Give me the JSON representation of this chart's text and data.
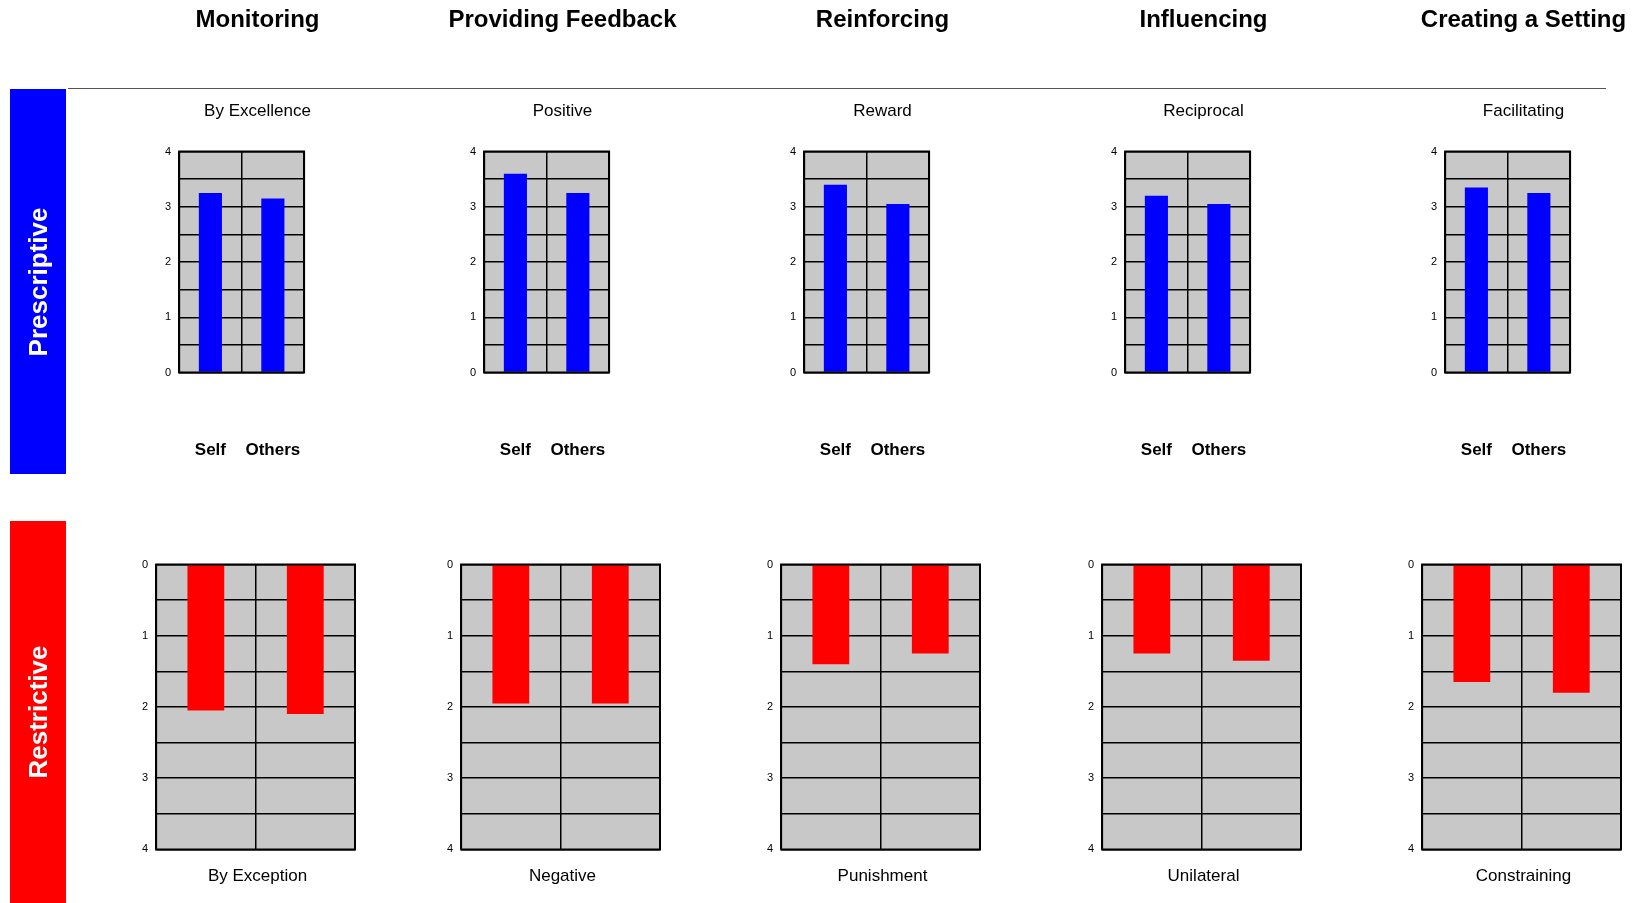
{
  "chart_data": [
    {
      "type": "bar",
      "title": "Monitoring",
      "subtitle": "By Excellence",
      "annotations": [
        "Prescriptive"
      ],
      "categories": [
        "Self",
        "Others"
      ],
      "values": [
        3.25,
        3.15
      ],
      "color": "#0000ff",
      "ylim": [
        0,
        4
      ],
      "yticks": [
        0,
        {
          "value": 0.5,
          "label": null
        },
        1,
        {
          "value": 1.5,
          "label": null
        },
        2,
        {
          "value": 2.5,
          "label": null
        },
        3,
        {
          "value": 3.5,
          "label": null
        },
        4
      ],
      "grid": true
    },
    {
      "type": "bar",
      "title": "Providing Feedback",
      "subtitle": "Positive",
      "categories": [
        "Self",
        "Others"
      ],
      "values": [
        3.6,
        3.25
      ],
      "color": "#0000ff",
      "ylim": [
        0,
        4
      ],
      "yticks": [
        0,
        {
          "value": 0.5,
          "label": null
        },
        1,
        {
          "value": 1.5,
          "label": null
        },
        2,
        {
          "value": 2.5,
          "label": null
        },
        3,
        {
          "value": 3.5,
          "label": null
        },
        4
      ],
      "grid": true
    },
    {
      "type": "bar",
      "title": "Reinforcing",
      "subtitle": "Reward",
      "categories": [
        "Self",
        "Others"
      ],
      "values": [
        3.4,
        3.05
      ],
      "color": "#0000ff",
      "ylim": [
        0,
        4
      ],
      "yticks": [
        0,
        {
          "value": 0.5,
          "label": null
        },
        1,
        {
          "value": 1.5,
          "label": null
        },
        2,
        {
          "value": 2.5,
          "label": null
        },
        3,
        {
          "value": 3.5,
          "label": null
        },
        4
      ],
      "grid": true
    },
    {
      "type": "bar",
      "title": "Influencing",
      "subtitle": "Reciprocal",
      "categories": [
        "Self",
        "Others"
      ],
      "values": [
        3.2,
        3.05
      ],
      "color": "#0000ff",
      "ylim": [
        0,
        4
      ],
      "yticks": [
        0,
        {
          "value": 0.5,
          "label": null
        },
        1,
        {
          "value": 1.5,
          "label": null
        },
        2,
        {
          "value": 2.5,
          "label": null
        },
        3,
        {
          "value": 3.5,
          "label": null
        },
        4
      ],
      "grid": true
    },
    {
      "type": "bar",
      "title": "Creating a Setting",
      "subtitle": "Facilitating",
      "categories": [
        "Self",
        "Others"
      ],
      "values": [
        3.35,
        3.25
      ],
      "color": "#0000ff",
      "ylim": [
        0,
        4
      ],
      "yticks": [
        0,
        {
          "value": 0.5,
          "label": null
        },
        1,
        {
          "value": 1.5,
          "label": null
        },
        2,
        {
          "value": 2.5,
          "label": null
        },
        3,
        {
          "value": 3.5,
          "label": null
        },
        4
      ],
      "grid": true
    },
    {
      "type": "bar",
      "xlabel": "By Exception",
      "annotations": [
        "Restrictive"
      ],
      "categories": [
        null,
        null
      ],
      "values": [
        2.05,
        2.1
      ],
      "color": "#ff0000",
      "ylim": [
        4,
        0
      ],
      "yticks": [
        0,
        {
          "value": 0.5,
          "label": null
        },
        1,
        {
          "value": 1.5,
          "label": null
        },
        2,
        {
          "value": 2.5,
          "label": null
        },
        3,
        {
          "value": 3.5,
          "label": null
        },
        4
      ],
      "grid": true,
      "tick_labels": "y"
    },
    {
      "type": "bar",
      "xlabel": "Negative",
      "categories": [
        null,
        null
      ],
      "values": [
        1.95,
        1.95
      ],
      "color": "#ff0000",
      "ylim": [
        4,
        0
      ],
      "yticks": [
        0,
        {
          "value": 0.5,
          "label": null
        },
        1,
        {
          "value": 1.5,
          "label": null
        },
        2,
        {
          "value": 2.5,
          "label": null
        },
        3,
        {
          "value": 3.5,
          "label": null
        },
        4
      ],
      "grid": true,
      "tick_labels": "y"
    },
    {
      "type": "bar",
      "xlabel": "Punishment",
      "categories": [
        null,
        null
      ],
      "values": [
        1.4,
        1.25
      ],
      "color": "#ff0000",
      "ylim": [
        4,
        0
      ],
      "yticks": [
        0,
        {
          "value": 0.5,
          "label": null
        },
        1,
        {
          "value": 1.5,
          "label": null
        },
        2,
        {
          "value": 2.5,
          "label": null
        },
        3,
        {
          "value": 3.5,
          "label": null
        },
        4
      ],
      "grid": true,
      "tick_labels": "y"
    },
    {
      "type": "bar",
      "xlabel": "Unilateral",
      "categories": [
        null,
        null
      ],
      "values": [
        1.25,
        1.35
      ],
      "color": "#ff0000",
      "ylim": [
        4,
        0
      ],
      "yticks": [
        0,
        {
          "value": 0.5,
          "label": null
        },
        1,
        {
          "value": 1.5,
          "label": null
        },
        2,
        {
          "value": 2.5,
          "label": null
        },
        3,
        {
          "value": 3.5,
          "label": null
        },
        4
      ],
      "grid": true,
      "tick_labels": "y"
    },
    {
      "type": "bar",
      "xlabel": "Constraining",
      "categories": [
        null,
        null
      ],
      "values": [
        1.65,
        1.8
      ],
      "color": "#ff0000",
      "ylim": [
        4,
        0
      ],
      "yticks": [
        0,
        {
          "value": 0.5,
          "label": null
        },
        1,
        {
          "value": 1.5,
          "label": null
        },
        2,
        {
          "value": 2.5,
          "label": null
        },
        3,
        {
          "value": 3.5,
          "label": null
        },
        4
      ],
      "grid": true,
      "tick_labels": "y"
    }
  ]
}
